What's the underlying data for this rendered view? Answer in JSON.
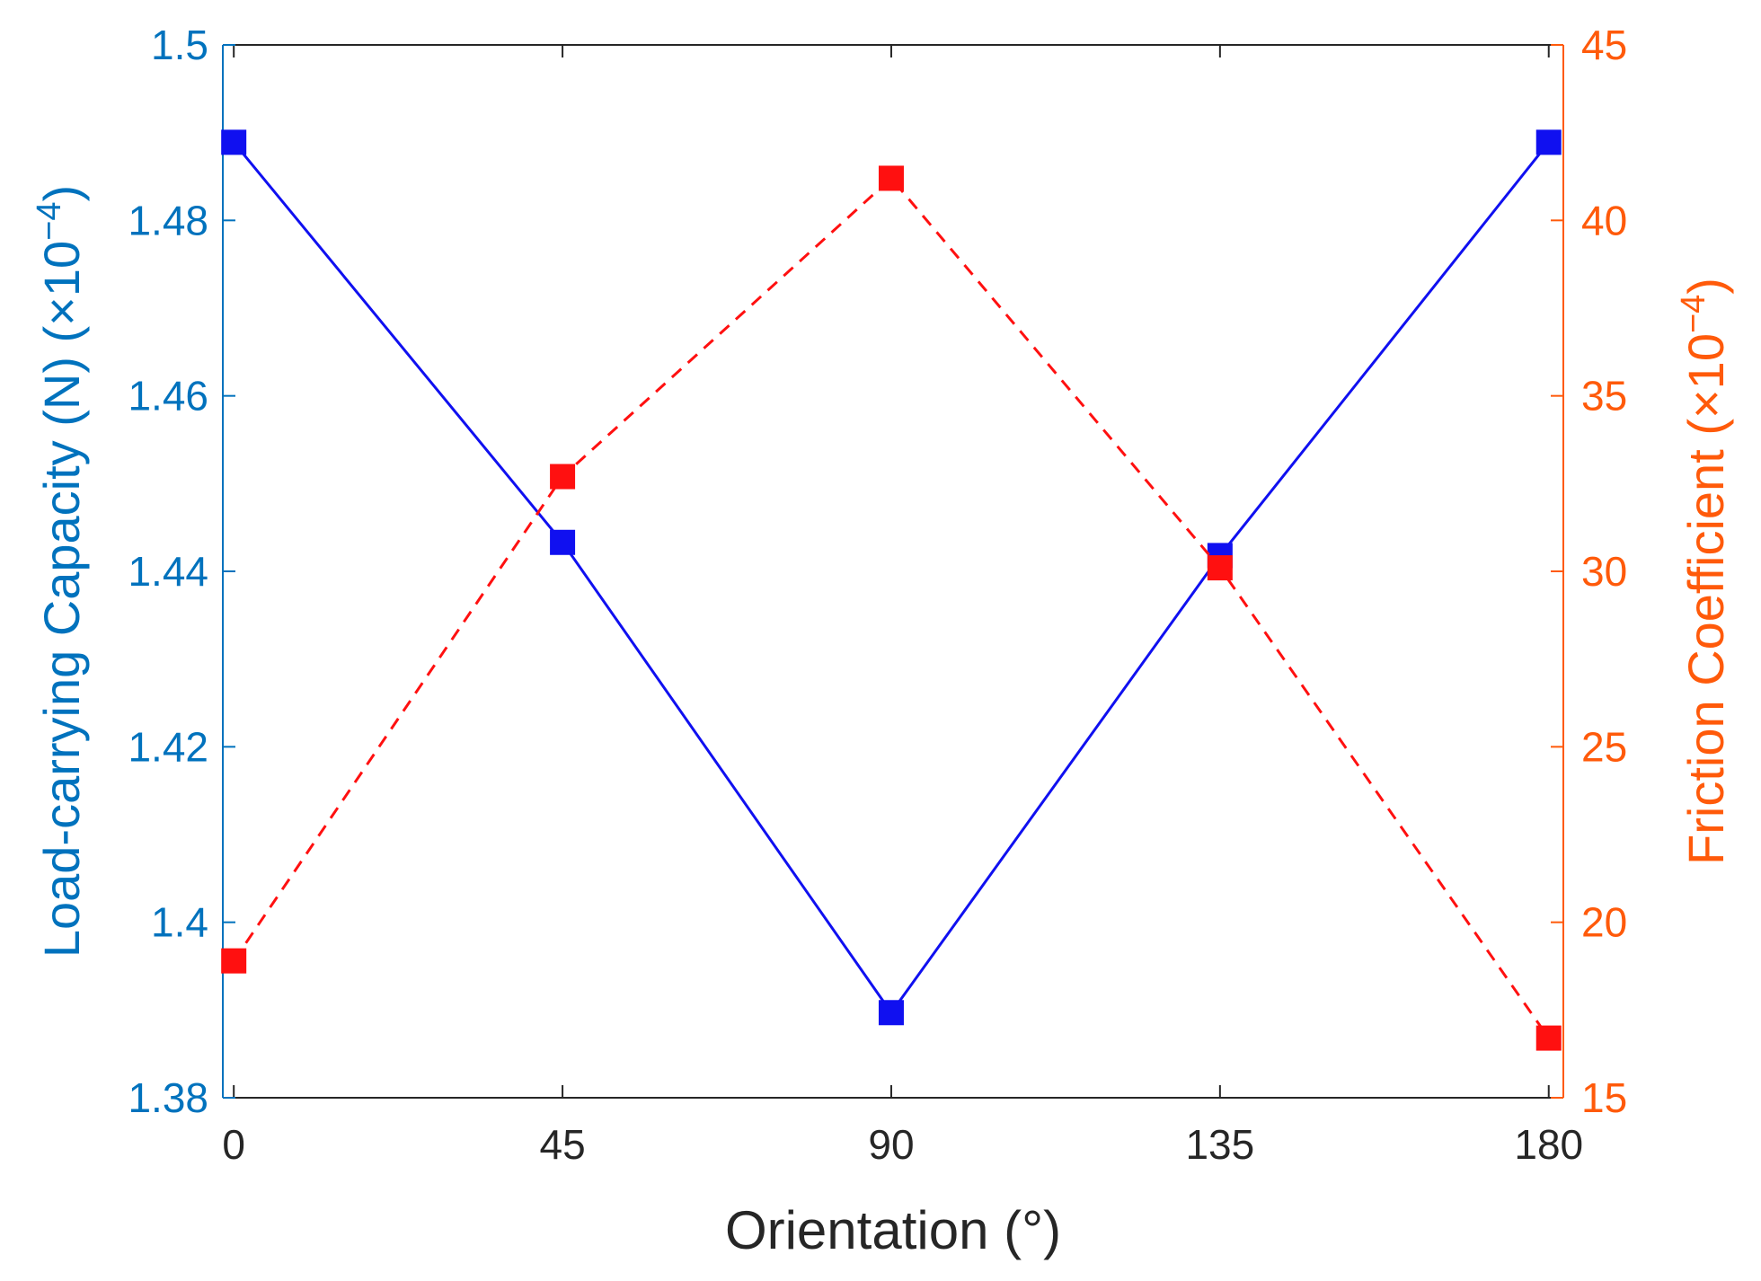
{
  "chart_data": {
    "type": "line",
    "xlabel": "Orientation (°)",
    "x_ticks": [
      "0",
      "45",
      "90",
      "135",
      "180"
    ],
    "xlim": [
      -1.5,
      182
    ],
    "left_axis": {
      "label_main": "Load-carrying Capacity (N) (",
      "label_mult": "×10",
      "label_exp": "−4",
      "label_close": ")",
      "ylim": [
        1.38,
        1.5
      ],
      "ticks": [
        "1.38",
        "1.4",
        "1.42",
        "1.44",
        "1.46",
        "1.48",
        "1.5"
      ],
      "color": "#0072BD"
    },
    "right_axis": {
      "label_main": "Friction Coefficient (",
      "label_mult": "×10",
      "label_exp": "−4",
      "label_close": ")",
      "ylim": [
        15,
        45
      ],
      "ticks": [
        "15",
        "20",
        "25",
        "30",
        "35",
        "40",
        "45"
      ],
      "color": "#FF5A0A"
    },
    "series": [
      {
        "axis": "left",
        "x": [
          0,
          45,
          90,
          135,
          180
        ],
        "values": [
          1.4889,
          1.4433,
          1.3897,
          1.4418,
          1.4889
        ],
        "color": "#1010F0",
        "line": "solid",
        "marker": "square"
      },
      {
        "axis": "right",
        "x": [
          0,
          45,
          90,
          135,
          180
        ],
        "values": [
          18.9,
          32.7,
          41.2,
          30.1,
          16.7
        ],
        "color": "#FF1010",
        "line": "dashed",
        "marker": "square"
      }
    ]
  }
}
